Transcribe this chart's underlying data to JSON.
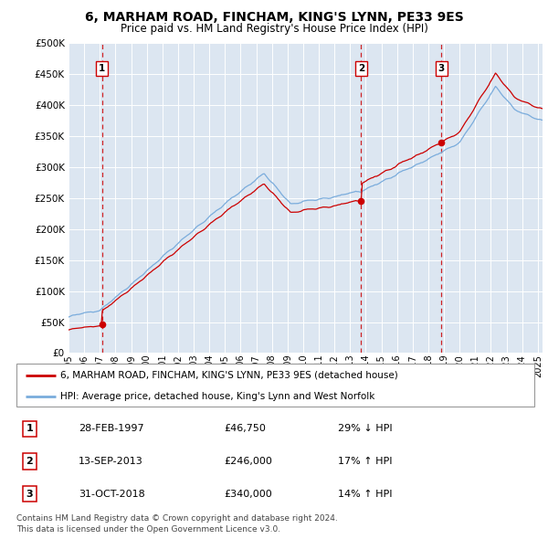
{
  "title1": "6, MARHAM ROAD, FINCHAM, KING'S LYNN, PE33 9ES",
  "title2": "Price paid vs. HM Land Registry's House Price Index (HPI)",
  "sale_dates_yr": [
    1997.1452,
    2013.7068,
    2018.8329
  ],
  "sale_prices": [
    46750,
    246000,
    340000
  ],
  "sale_labels": [
    "1",
    "2",
    "3"
  ],
  "legend_line1": "6, MARHAM ROAD, FINCHAM, KING'S LYNN, PE33 9ES (detached house)",
  "legend_line2": "HPI: Average price, detached house, King's Lynn and West Norfolk",
  "table": [
    [
      "1",
      "28-FEB-1997",
      "£46,750",
      "29% ↓ HPI"
    ],
    [
      "2",
      "13-SEP-2013",
      "£246,000",
      "17% ↑ HPI"
    ],
    [
      "3",
      "31-OCT-2018",
      "£340,000",
      "14% ↑ HPI"
    ]
  ],
  "footer1": "Contains HM Land Registry data © Crown copyright and database right 2024.",
  "footer2": "This data is licensed under the Open Government Licence v3.0.",
  "sale_color": "#cc0000",
  "hpi_color": "#7aacdc",
  "bg_color": "#dce6f1",
  "grid_color": "#c0cfe0",
  "ylim": [
    0,
    500000
  ],
  "xlim_start": 1995.0,
  "xlim_end": 2025.3,
  "yticks": [
    0,
    50000,
    100000,
    150000,
    200000,
    250000,
    300000,
    350000,
    400000,
    450000,
    500000
  ]
}
